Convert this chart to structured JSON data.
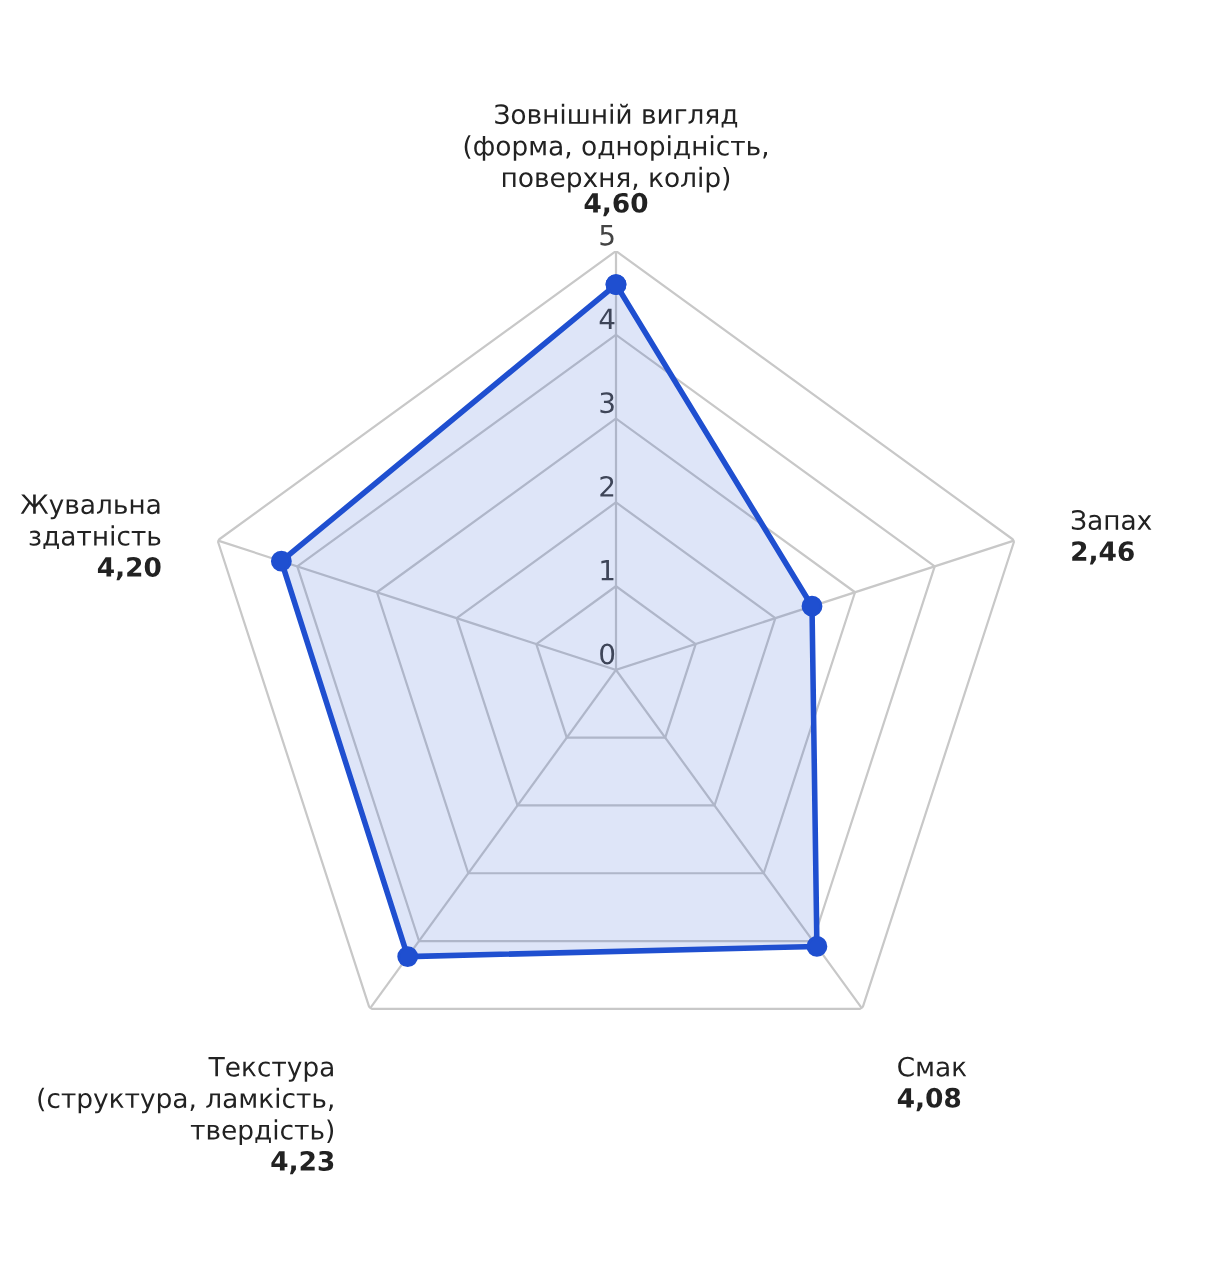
{
  "chart_data": {
    "type": "radar",
    "categories": [
      "Зовнішній вигляд\n(форма, однорідність,\nповерхня, колір)\n4,60",
      "Запах\n2,46",
      "Смак\n4,08",
      "Текстура\n(структура, ламкість,\nтвердість)\n4,23",
      "Жувальна\nздатність\n4,20"
    ],
    "series": [
      {
        "color": "#1f4fd0",
        "values": [
          4.6,
          2.46,
          4.08,
          4.23,
          4.2
        ]
      }
    ],
    "ylim": [
      0,
      5
    ],
    "yticks": [
      0,
      1,
      2,
      3,
      4,
      5
    ],
    "marker": "circle",
    "grid": true
  }
}
